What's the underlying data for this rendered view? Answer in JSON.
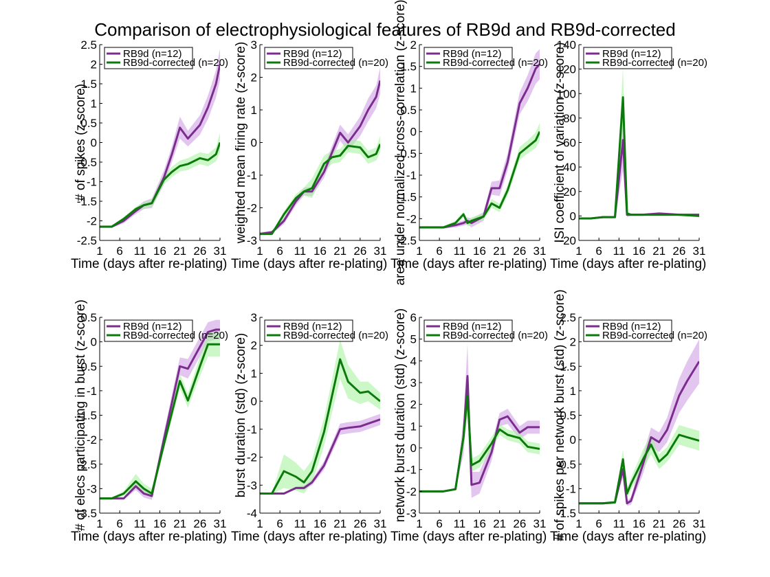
{
  "figure_title": "Comparison of electrophysiological features of RB9d and RB9d-corrected",
  "colors": {
    "rb9d_line": "#7B2D8E",
    "rb9d_fill": "#D9B3EA",
    "corrected_line": "#0B7A0B",
    "corrected_fill": "#A8F4A0"
  },
  "chart_data": [
    {
      "type": "line",
      "xlabel": "Time (days after re-plating)",
      "ylabel": "# of spikes (z-score)",
      "xlim": [
        1,
        31
      ],
      "ylim": [
        -2.5,
        2.5
      ],
      "xticks": [
        1,
        6,
        11,
        16,
        21,
        26,
        31
      ],
      "yticks": [
        -2.5,
        -2,
        -1.5,
        -1,
        -0.5,
        0,
        0.5,
        1,
        1.5,
        2,
        2.5
      ],
      "legend": "top-left",
      "x": [
        1,
        4,
        7,
        10,
        12,
        14,
        17,
        19,
        21,
        23,
        26,
        28,
        30,
        31
      ],
      "series": [
        {
          "name": "RB9d (n=12)",
          "values": [
            -2.15,
            -2.15,
            -2.0,
            -1.75,
            -1.6,
            -1.55,
            -0.9,
            -0.3,
            0.38,
            0.1,
            0.45,
            0.9,
            1.5,
            2.0
          ],
          "err": [
            0.03,
            0.03,
            0.06,
            0.08,
            0.1,
            0.12,
            0.18,
            0.2,
            0.28,
            0.2,
            0.25,
            0.3,
            0.35,
            0.4
          ]
        },
        {
          "name": "RB9d-corrected (n=20)",
          "values": [
            -2.15,
            -2.15,
            -1.95,
            -1.7,
            -1.6,
            -1.55,
            -0.95,
            -0.75,
            -0.6,
            -0.55,
            -0.4,
            -0.45,
            -0.3,
            0.0
          ],
          "err": [
            0.03,
            0.03,
            0.05,
            0.06,
            0.08,
            0.1,
            0.12,
            0.13,
            0.14,
            0.15,
            0.15,
            0.16,
            0.18,
            0.25
          ]
        }
      ]
    },
    {
      "type": "line",
      "xlabel": "Time (days after re-plating)",
      "ylabel": "weighted mean firing rate (z-score)",
      "xlim": [
        1,
        31
      ],
      "ylim": [
        -3,
        3
      ],
      "xticks": [
        1,
        6,
        11,
        16,
        21,
        26,
        31
      ],
      "yticks": [
        -3,
        -2,
        -1,
        0,
        1,
        2,
        3
      ],
      "legend": "top-left",
      "x": [
        1,
        4,
        7,
        10,
        12,
        14,
        17,
        19,
        21,
        23,
        26,
        28,
        30,
        31
      ],
      "series": [
        {
          "name": "RB9d (n=12)",
          "values": [
            -2.8,
            -2.75,
            -2.4,
            -1.8,
            -1.5,
            -1.5,
            -0.9,
            -0.3,
            0.3,
            0.0,
            0.5,
            1.0,
            1.4,
            1.9
          ],
          "err": [
            0.05,
            0.05,
            0.1,
            0.12,
            0.12,
            0.14,
            0.18,
            0.2,
            0.25,
            0.25,
            0.3,
            0.35,
            0.35,
            0.4
          ]
        },
        {
          "name": "RB9d-corrected (n=20)",
          "values": [
            -2.8,
            -2.8,
            -2.2,
            -1.7,
            -1.5,
            -1.4,
            -0.65,
            -0.45,
            -0.4,
            -0.1,
            -0.15,
            -0.45,
            -0.35,
            -0.05
          ],
          "err": [
            0.05,
            0.05,
            0.1,
            0.12,
            0.12,
            0.3,
            0.25,
            0.2,
            0.2,
            0.2,
            0.2,
            0.2,
            0.2,
            0.25
          ]
        }
      ]
    },
    {
      "type": "line",
      "xlabel": "Time (days after re-plating)",
      "ylabel": "area under normalized cross-correlation (z-score)",
      "xlim": [
        1,
        31
      ],
      "ylim": [
        -2.5,
        2
      ],
      "xticks": [
        1,
        6,
        11,
        16,
        21,
        26,
        31
      ],
      "yticks": [
        -2.5,
        -2,
        -1.5,
        -1,
        -0.5,
        0,
        0.5,
        1,
        1.5,
        2
      ],
      "legend": "top-left",
      "x": [
        1,
        4,
        7,
        10,
        12,
        13,
        14,
        17,
        19,
        21,
        23,
        26,
        28,
        30,
        31
      ],
      "series": [
        {
          "name": "RB9d (n=12)",
          "values": [
            -2.2,
            -2.2,
            -2.2,
            -2.15,
            -2.1,
            -2.05,
            -2.1,
            -1.95,
            -1.3,
            -1.3,
            -0.7,
            0.65,
            1.0,
            1.45,
            1.55
          ],
          "err": [
            0.03,
            0.03,
            0.03,
            0.05,
            0.06,
            0.08,
            0.1,
            0.1,
            0.15,
            0.18,
            0.2,
            0.25,
            0.3,
            0.35,
            0.35
          ]
        },
        {
          "name": "RB9d-corrected (n=20)",
          "values": [
            -2.2,
            -2.2,
            -2.2,
            -2.1,
            -1.9,
            -2.1,
            -2.05,
            -1.95,
            -1.65,
            -1.75,
            -1.35,
            -0.5,
            -0.35,
            -0.2,
            0.0
          ],
          "err": [
            0.03,
            0.03,
            0.03,
            0.05,
            0.06,
            0.08,
            0.08,
            0.08,
            0.1,
            0.1,
            0.12,
            0.15,
            0.15,
            0.18,
            0.2
          ]
        }
      ]
    },
    {
      "type": "line",
      "xlabel": "Time (days after re-plating)",
      "ylabel": "ISI coefficient of variation (z-score)",
      "xlim": [
        1,
        31
      ],
      "ylim": [
        -20,
        140
      ],
      "xticks": [
        1,
        6,
        11,
        16,
        21,
        26,
        31
      ],
      "yticks": [
        -20,
        0,
        20,
        40,
        60,
        80,
        100,
        120,
        140
      ],
      "legend": "top-left",
      "x": [
        1,
        4,
        7,
        10,
        12,
        13,
        14,
        17,
        21,
        26,
        31
      ],
      "series": [
        {
          "name": "RB9d (n=12)",
          "values": [
            -2,
            -2,
            -1,
            -1,
            62,
            1,
            1,
            1,
            2,
            1,
            1
          ],
          "err": [
            0.5,
            0.5,
            0.5,
            0.5,
            25,
            2,
            1,
            1,
            1,
            1,
            1
          ]
        },
        {
          "name": "RB9d-corrected (n=20)",
          "values": [
            -2,
            -2,
            -1,
            -1,
            97,
            2,
            1,
            1,
            1,
            1,
            0
          ],
          "err": [
            0.5,
            0.5,
            0.5,
            0.5,
            25,
            2,
            1,
            1,
            1,
            1,
            1
          ]
        }
      ]
    },
    {
      "type": "line",
      "xlabel": "Time (days after re-plating)",
      "ylabel": "# of elecs participating in burst (z-score)",
      "xlim": [
        1,
        31
      ],
      "ylim": [
        -3.5,
        0.5
      ],
      "xticks": [
        1,
        6,
        11,
        16,
        21,
        26,
        31
      ],
      "yticks": [
        -3.5,
        -3,
        -2.5,
        -2,
        -1.5,
        -1,
        -0.5,
        0,
        0.5
      ],
      "legend": "top-left",
      "x": [
        1,
        4,
        7,
        10,
        12,
        14,
        17,
        21,
        23,
        26,
        28,
        30,
        31
      ],
      "series": [
        {
          "name": "RB9d (n=12)",
          "values": [
            -3.2,
            -3.2,
            -3.2,
            -2.95,
            -3.1,
            -3.15,
            -2.0,
            -0.5,
            -0.55,
            -0.1,
            0.2,
            0.25,
            0.25
          ],
          "err": [
            0.02,
            0.02,
            0.02,
            0.08,
            0.08,
            0.08,
            0.15,
            0.18,
            0.2,
            0.2,
            0.2,
            0.2,
            0.2
          ]
        },
        {
          "name": "RB9d-corrected (n=20)",
          "values": [
            -3.2,
            -3.2,
            -3.1,
            -2.85,
            -3.0,
            -3.1,
            -2.1,
            -0.8,
            -1.2,
            -0.5,
            -0.05,
            -0.05,
            -0.05
          ],
          "err": [
            0.02,
            0.02,
            0.05,
            0.15,
            0.1,
            0.1,
            0.12,
            0.15,
            0.15,
            0.2,
            0.25,
            0.25,
            0.25
          ]
        }
      ]
    },
    {
      "type": "line",
      "xlabel": "Time (days after re-plating)",
      "ylabel": "burst duration (std) (z-score)",
      "xlim": [
        1,
        31
      ],
      "ylim": [
        -4,
        3
      ],
      "xticks": [
        1,
        6,
        11,
        16,
        21,
        26,
        31
      ],
      "yticks": [
        -4,
        -3,
        -2,
        -1,
        0,
        1,
        2,
        3
      ],
      "legend": "top-left",
      "x": [
        1,
        4,
        7,
        10,
        12,
        14,
        17,
        21,
        23,
        26,
        28,
        31
      ],
      "series": [
        {
          "name": "RB9d (n=12)",
          "values": [
            -3.3,
            -3.3,
            -3.3,
            -3.1,
            -3.1,
            -2.9,
            -2.3,
            -1.0,
            -0.95,
            -0.9,
            -0.8,
            -0.65
          ],
          "err": [
            0.02,
            0.02,
            0.02,
            0.05,
            0.08,
            0.1,
            0.15,
            0.2,
            0.2,
            0.2,
            0.2,
            0.2
          ]
        },
        {
          "name": "RB9d-corrected (n=20)",
          "values": [
            -3.3,
            -3.3,
            -2.5,
            -2.7,
            -2.9,
            -2.5,
            -1.1,
            1.5,
            0.7,
            0.3,
            0.35,
            0.0
          ],
          "err": [
            0.02,
            0.02,
            0.6,
            0.5,
            0.4,
            0.4,
            0.5,
            0.7,
            0.6,
            0.4,
            0.35,
            0.3
          ]
        }
      ]
    },
    {
      "type": "line",
      "xlabel": "Time (days after re-plating)",
      "ylabel": "network burst duration (std) (z-score)",
      "xlim": [
        1,
        31
      ],
      "ylim": [
        -3,
        6
      ],
      "xticks": [
        1,
        6,
        11,
        16,
        21,
        26,
        31
      ],
      "yticks": [
        -3,
        -2,
        -1,
        0,
        1,
        2,
        3,
        4,
        5,
        6
      ],
      "legend": "top-left",
      "x": [
        1,
        4,
        7,
        10,
        12,
        13,
        14,
        16,
        19,
        21,
        23,
        26,
        28,
        31
      ],
      "series": [
        {
          "name": "RB9d (n=12)",
          "values": [
            -2,
            -2,
            -2,
            -1.9,
            0.5,
            3.3,
            -1.7,
            -1.6,
            -0.2,
            1.3,
            1.45,
            0.7,
            0.95,
            0.95
          ],
          "err": [
            0.02,
            0.02,
            0.02,
            0.05,
            0.8,
            1.5,
            0.6,
            0.5,
            0.4,
            0.3,
            0.35,
            0.3,
            0.3,
            0.3
          ]
        },
        {
          "name": "RB9d-corrected (n=20)",
          "values": [
            -2,
            -2,
            -2,
            -1.9,
            0.5,
            2.4,
            -0.8,
            -0.6,
            0.2,
            0.85,
            0.6,
            0.45,
            0.05,
            -0.05
          ],
          "err": [
            0.02,
            0.02,
            0.02,
            0.05,
            0.5,
            0.8,
            0.3,
            0.3,
            0.3,
            0.25,
            0.25,
            0.25,
            0.25,
            0.25
          ]
        }
      ]
    },
    {
      "type": "line",
      "xlabel": "Time (days after re-plating)",
      "ylabel": "# of spikes per network burst (std) (z-score)",
      "xlim": [
        1,
        31
      ],
      "ylim": [
        -1.5,
        2.5
      ],
      "xticks": [
        1,
        6,
        11,
        16,
        21,
        26,
        31
      ],
      "yticks": [
        -1.5,
        -1,
        -0.5,
        0,
        0.5,
        1,
        1.5,
        2,
        2.5
      ],
      "legend": "top-left",
      "x": [
        1,
        4,
        7,
        10,
        12,
        13,
        14,
        17,
        19,
        21,
        23,
        26,
        28,
        31
      ],
      "series": [
        {
          "name": "RB9d (n=12)",
          "values": [
            -1.3,
            -1.3,
            -1.3,
            -1.28,
            -0.6,
            -1.3,
            -1.25,
            -0.5,
            0.05,
            -0.05,
            0.2,
            0.9,
            1.2,
            1.6
          ],
          "err": [
            0.02,
            0.02,
            0.02,
            0.03,
            0.15,
            0.05,
            0.08,
            0.2,
            0.2,
            0.2,
            0.25,
            0.35,
            0.4,
            0.45
          ]
        },
        {
          "name": "RB9d-corrected (n=20)",
          "values": [
            -1.3,
            -1.3,
            -1.3,
            -1.28,
            -0.4,
            -1.1,
            -0.9,
            -0.4,
            -0.1,
            -0.45,
            -0.3,
            0.1,
            0.05,
            -0.02
          ],
          "err": [
            0.02,
            0.02,
            0.02,
            0.03,
            0.2,
            0.1,
            0.12,
            0.2,
            0.2,
            0.15,
            0.15,
            0.2,
            0.2,
            0.2
          ]
        }
      ]
    }
  ]
}
